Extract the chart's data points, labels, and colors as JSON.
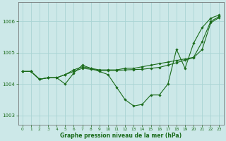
{
  "xlabel": "Graphe pression niveau de la mer (hPa)",
  "xlim": [
    -0.5,
    23.5
  ],
  "ylim": [
    1002.7,
    1006.6
  ],
  "yticks": [
    1003,
    1004,
    1005,
    1006
  ],
  "xticks": [
    0,
    1,
    2,
    3,
    4,
    5,
    6,
    7,
    8,
    9,
    10,
    11,
    12,
    13,
    14,
    15,
    16,
    17,
    18,
    19,
    20,
    21,
    22,
    23
  ],
  "bg_color": "#cce8e8",
  "line_color": "#1a6b1a",
  "grid_color": "#aad4d4",
  "series1": [
    1004.4,
    1004.4,
    1004.15,
    1004.2,
    1004.2,
    1004.0,
    1004.35,
    1004.6,
    1004.5,
    1004.4,
    1004.3,
    1003.9,
    1003.5,
    1003.3,
    1003.35,
    1003.65,
    1003.65,
    1004.0,
    1005.1,
    1004.5,
    1005.3,
    1005.8,
    1006.1,
    1006.2
  ],
  "series2": [
    1004.4,
    1004.4,
    1004.15,
    1004.2,
    1004.2,
    1004.3,
    1004.45,
    1004.55,
    1004.5,
    1004.45,
    1004.45,
    1004.45,
    1004.5,
    1004.5,
    1004.55,
    1004.6,
    1004.65,
    1004.7,
    1004.75,
    1004.8,
    1004.85,
    1005.35,
    1006.0,
    1006.15
  ],
  "series3": [
    1004.4,
    1004.4,
    1004.15,
    1004.2,
    1004.2,
    1004.3,
    1004.4,
    1004.5,
    1004.47,
    1004.43,
    1004.43,
    1004.43,
    1004.45,
    1004.46,
    1004.47,
    1004.5,
    1004.53,
    1004.6,
    1004.68,
    1004.76,
    1004.84,
    1005.1,
    1005.95,
    1006.12
  ]
}
